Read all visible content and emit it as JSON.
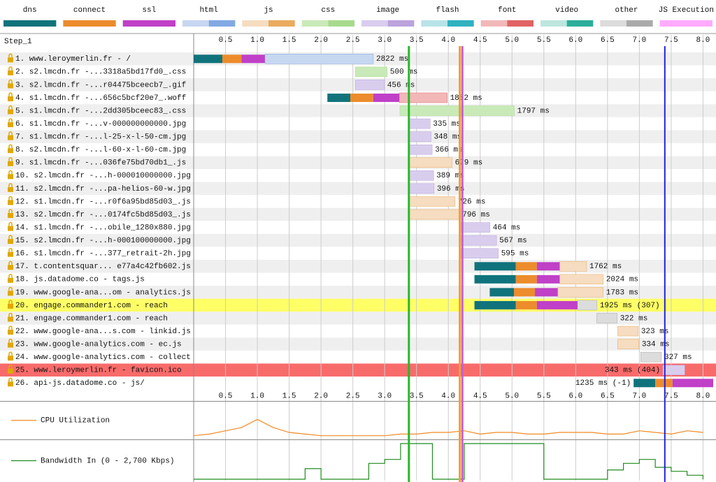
{
  "chart_data": {
    "type": "waterfall",
    "title": "Step_1",
    "legend": [
      {
        "name": "dns",
        "color": "#10737c"
      },
      {
        "name": "connect",
        "color": "#ec8c2c"
      },
      {
        "name": "ssl",
        "color": "#c040c8"
      },
      {
        "name": "html",
        "color": "#82a9e3",
        "light": "#c6d7f0"
      },
      {
        "name": "js",
        "color": "#eaab5f",
        "light": "#f6dcc0"
      },
      {
        "name": "css",
        "color": "#a8da8e",
        "light": "#c9eab8"
      },
      {
        "name": "image",
        "color": "#bba3dc",
        "light": "#d9cdee"
      },
      {
        "name": "flash",
        "color": "#2fb1c0",
        "light": "#b8e3e8"
      },
      {
        "name": "font",
        "color": "#e16363",
        "light": "#f2b8b8"
      },
      {
        "name": "video",
        "color": "#2bae9a",
        "light": "#bde6de"
      },
      {
        "name": "other",
        "color": "#aaaaaa",
        "light": "#dcdcdc"
      },
      {
        "name": "JS Execution",
        "color": "#ffaaff"
      }
    ],
    "xlim": [
      0,
      8.16
    ],
    "xticks": [
      0.5,
      {
        "value": 1,
        "label": "1.0"
      },
      1.5,
      {
        "value": 2,
        "label": "2.0"
      },
      2.5,
      {
        "value": 3,
        "label": "3.0"
      },
      3.5,
      {
        "value": 4,
        "label": "4.0"
      },
      4.5,
      {
        "value": 5,
        "label": "5.0"
      },
      5.5,
      {
        "value": 6,
        "label": "6.0"
      },
      6.5,
      {
        "value": 7,
        "label": "7.0"
      },
      7.5,
      {
        "value": 8,
        "label": "8.0"
      }
    ],
    "grid": true,
    "categories": [
      "1. www.leroymerlin.fr - /",
      "2. s2.lmcdn.fr -...3318a5bd17fd0_.css",
      "3. s2.lmcdn.fr -...r04475bceecb7_.gif",
      "4. s1.lmcdn.fr -...656c5bcf20e7_.woff",
      "5. s1.lmcdn.fr -...2dd305bceec83_.css",
      "6. s1.lmcdn.fr -...v-000000000000.jpg",
      "7. s1.lmcdn.fr -...l-25-x-l-50-cm.jpg",
      "8. s2.lmcdn.fr -...l-60-x-l-60-cm.jpg",
      "9. s1.lmcdn.fr -...036fe75bd70db1_.js",
      "10. s2.lmcdn.fr -...h-000010000000.jpg",
      "11. s2.lmcdn.fr -...pa-helios-60-w.jpg",
      "12. s1.lmcdn.fr -...r0f6a95bd85d03_.js",
      "13. s2.lmcdn.fr -...0174fc5bd85d03_.js",
      "14. s1.lmcdn.fr -...obile_1280x880.jpg",
      "15. s2.lmcdn.fr -...h-000100000000.jpg",
      "16. s1.lmcdn.fr -...377_retrait-2h.jpg",
      "17. t.contentsquar... e77a4c42fb602.js",
      "18. js.datadome.co - tags.js",
      "19. www.google-ana...om - analytics.js",
      "20. engage.commander1.com - reach",
      "21. engage.commander1.com - reach",
      "22. www.google-ana...s.com - linkid.js",
      "23. www.google-analytics.com - ec.js",
      "24. www.google-analytics.com - collect",
      "25. www.leroymerlin.fr - favicon.ico",
      "26. api-js.datadome.co - js/"
    ],
    "types": [
      "html",
      "css",
      "image",
      "font",
      "css",
      "image",
      "image",
      "image",
      "js",
      "image",
      "image",
      "js",
      "js",
      "image",
      "image",
      "image",
      "js",
      "js",
      "js",
      "other",
      "other",
      "js",
      "js",
      "other",
      "image",
      "other"
    ],
    "starts": [
      0,
      2.54,
      2.54,
      2.1,
      3.24,
      3.38,
      3.38,
      3.38,
      3.38,
      3.38,
      3.38,
      3.38,
      3.38,
      4.19,
      4.19,
      4.19,
      4.41,
      4.41,
      4.65,
      4.41,
      6.33,
      6.66,
      6.66,
      7.02,
      7.37,
      6.91
    ],
    "values": [
      2.822,
      0.5,
      0.456,
      1.882,
      1.797,
      0.335,
      0.348,
      0.366,
      0.679,
      0.389,
      0.396,
      0.726,
      0.796,
      0.464,
      0.567,
      0.595,
      1.762,
      2.024,
      1.783,
      1.925,
      0.322,
      0.323,
      0.334,
      0.327,
      0.343,
      1.235
    ],
    "value_labels": [
      "2822 ms",
      "500 ms",
      "456 ms",
      "1882 ms",
      "1797 ms",
      "335 ms",
      "348 ms",
      "366 ms",
      "679 ms",
      "389 ms",
      "396 ms",
      "726 ms",
      "796 ms",
      "464 ms",
      "567 ms",
      "595 ms",
      "1762 ms",
      "2024 ms",
      "1783 ms",
      "1925 ms (307)",
      "322 ms",
      "323 ms",
      "334 ms",
      "327 ms",
      "343 ms (404)",
      "1235 ms (-1)"
    ],
    "connection": [
      [
        0.45,
        0.3,
        0.37
      ],
      null,
      null,
      [
        0.36,
        0.36,
        0.41
      ],
      null,
      null,
      null,
      null,
      null,
      null,
      null,
      null,
      null,
      null,
      null,
      null,
      [
        0.65,
        0.33,
        0.36
      ],
      [
        0.65,
        0.33,
        0.36
      ],
      [
        0.38,
        0.33,
        0.36
      ],
      [
        0.65,
        0.33,
        0.64
      ],
      null,
      null,
      null,
      null,
      null,
      [
        0.34,
        0.27,
        0.64
      ]
    ],
    "row_highlights": [
      null,
      null,
      null,
      null,
      null,
      null,
      null,
      null,
      null,
      null,
      null,
      null,
      null,
      null,
      null,
      null,
      null,
      null,
      null,
      "#ffff66",
      null,
      null,
      null,
      null,
      "#f86b6b",
      null
    ],
    "events": [
      {
        "value": 3.38,
        "color": "#28b828"
      },
      {
        "value": 4.18,
        "color": "#f0a030"
      },
      {
        "value": 4.22,
        "color": "#c060e0"
      },
      {
        "value": 7.4,
        "color": "#2020e0"
      }
    ],
    "graphs": [
      {
        "name": "CPU Utilization",
        "color": "#f08a24",
        "ylim": [
          0,
          100
        ],
        "x": [
          0,
          0.25,
          0.5,
          0.75,
          1,
          1.25,
          1.5,
          1.75,
          2,
          2.25,
          2.5,
          2.75,
          3,
          3.25,
          3.5,
          3.75,
          4,
          4.25,
          4.5,
          4.75,
          5,
          5.25,
          5.5,
          5.75,
          6,
          6.25,
          6.5,
          6.75,
          7,
          7.25,
          7.5,
          7.75,
          8
        ],
        "values": [
          5,
          10,
          20,
          30,
          55,
          30,
          15,
          10,
          5,
          5,
          5,
          5,
          5,
          10,
          10,
          15,
          15,
          20,
          10,
          15,
          15,
          10,
          10,
          15,
          15,
          15,
          10,
          10,
          20,
          15,
          10,
          20,
          15
        ]
      },
      {
        "name": "Bandwidth In (0 - 2,700 Kbps)",
        "color": "#1e8c1e",
        "ylim": [
          0,
          2700
        ],
        "x": [
          0,
          0.25,
          0.5,
          0.75,
          1,
          1.25,
          1.5,
          1.75,
          2,
          2.25,
          2.5,
          2.75,
          3,
          3.25,
          3.5,
          3.75,
          4,
          4.25,
          4.5,
          4.75,
          5,
          5.25,
          5.5,
          5.75,
          6,
          6.25,
          6.5,
          6.75,
          7,
          7.25,
          7.5,
          7.75,
          8
        ],
        "values": [
          0,
          0,
          0,
          0,
          0,
          0,
          0,
          800,
          0,
          0,
          0,
          1200,
          1500,
          2700,
          2700,
          0,
          0,
          2700,
          2700,
          2700,
          2700,
          2700,
          0,
          0,
          0,
          0,
          700,
          1200,
          1500,
          900,
          600,
          300,
          0
        ]
      }
    ]
  }
}
